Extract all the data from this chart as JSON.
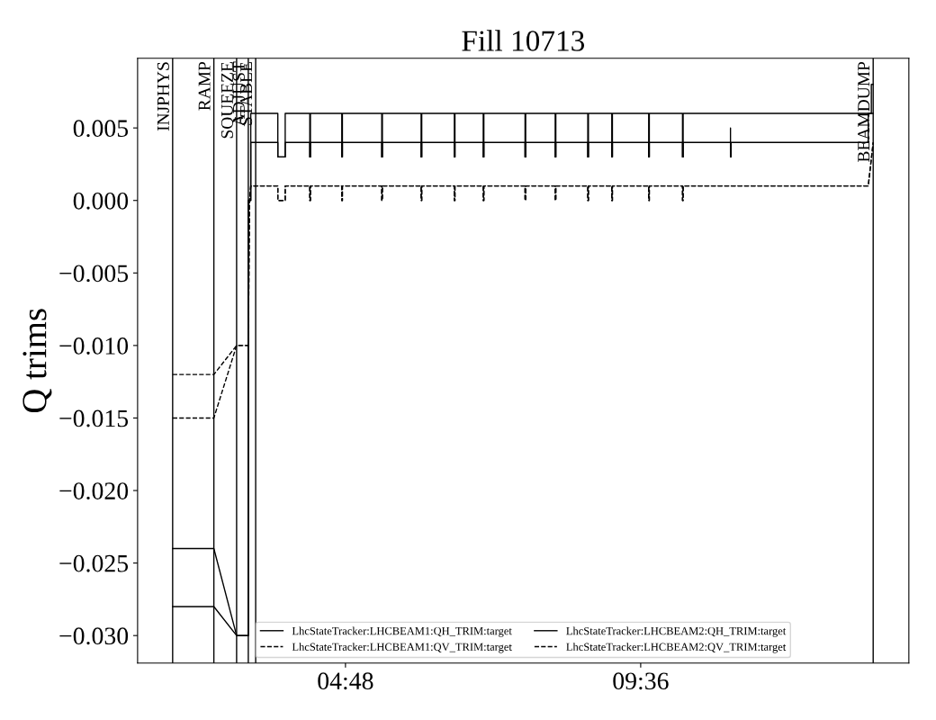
{
  "chart_data": {
    "type": "line",
    "title": "Fill 10713",
    "ylabel": "Q trims",
    "xlim": [
      1.42,
      13.96
    ],
    "xticks": [
      {
        "value": 4.8,
        "label": "04:48"
      },
      {
        "value": 9.6,
        "label": "09:36"
      }
    ],
    "ylim": [
      -0.0319,
      0.0098
    ],
    "yticks": [
      {
        "value": 0.005,
        "label": "0.005"
      },
      {
        "value": 0.0,
        "label": "0.000"
      },
      {
        "value": -0.005,
        "label": "−0.005"
      },
      {
        "value": -0.01,
        "label": "−0.010"
      },
      {
        "value": -0.015,
        "label": "−0.015"
      },
      {
        "value": -0.02,
        "label": "−0.020"
      },
      {
        "value": -0.025,
        "label": "−0.025"
      },
      {
        "value": -0.03,
        "label": "−0.030"
      }
    ],
    "grid": false,
    "legend": "bottom",
    "marker": "none",
    "ref_lines": [
      {
        "axis": "x",
        "value": 1.99,
        "label": "INJPHYS",
        "color": "#000000"
      },
      {
        "axis": "x",
        "value": 2.66,
        "label": "RAMP",
        "color": "#000000"
      },
      {
        "axis": "x",
        "value": 3.03,
        "label": "SQUEEZE",
        "color": "#000000"
      },
      {
        "axis": "x",
        "value": 3.22,
        "label": "ADJUST",
        "color": "#000000"
      },
      {
        "axis": "x",
        "value": 3.34,
        "label": "STABLE",
        "color": "#000000"
      },
      {
        "axis": "x",
        "value": 13.38,
        "label": "BEAMDUMP",
        "color": "#000000"
      }
    ],
    "series": [
      {
        "name": "LhcStateTracker:LHCBEAM1:QH_TRIM:target",
        "color": "#000000",
        "line_style": "solid",
        "x": [
          1.99,
          2.66,
          3.03,
          3.22,
          3.22,
          3.26,
          3.26,
          3.7,
          3.7,
          3.82,
          3.82,
          4.22,
          4.22,
          4.23,
          4.23,
          4.74,
          4.74,
          4.75,
          4.75,
          5.39,
          5.39,
          5.4,
          5.4,
          6.03,
          6.03,
          6.04,
          6.04,
          6.57,
          6.57,
          6.58,
          6.58,
          7.04,
          7.04,
          7.05,
          7.05,
          7.72,
          7.72,
          7.73,
          7.73,
          8.21,
          8.21,
          8.22,
          8.22,
          8.74,
          8.74,
          8.75,
          8.75,
          9.13,
          9.13,
          9.14,
          9.14,
          9.73,
          9.73,
          9.74,
          9.74,
          10.28,
          10.28,
          10.29,
          10.29,
          13.35,
          13.35,
          13.38
        ],
        "values": [
          -0.024,
          -0.024,
          -0.03,
          -0.03,
          0,
          0,
          0.006,
          0.006,
          0.003,
          0.003,
          0.006,
          0.006,
          0.003,
          0.003,
          0.006,
          0.006,
          0.003,
          0.003,
          0.006,
          0.006,
          0.003,
          0.003,
          0.006,
          0.006,
          0.003,
          0.003,
          0.006,
          0.006,
          0.003,
          0.003,
          0.006,
          0.006,
          0.003,
          0.003,
          0.006,
          0.006,
          0.003,
          0.003,
          0.006,
          0.006,
          0.003,
          0.003,
          0.006,
          0.006,
          0.003,
          0.003,
          0.006,
          0.006,
          0.003,
          0.003,
          0.006,
          0.006,
          0.003,
          0.003,
          0.006,
          0.006,
          0.003,
          0.003,
          0.006,
          0.006,
          0.008,
          0.008
        ]
      },
      {
        "name": "LhcStateTracker:LHCBEAM1:QV_TRIM:target",
        "color": "#000000",
        "line_style": "dashed",
        "x": [
          1.99,
          2.66,
          3.03,
          3.22,
          3.24,
          3.26,
          3.7,
          3.7,
          3.82,
          3.82,
          4.22,
          4.22,
          4.23,
          4.23,
          4.74,
          4.74,
          4.75,
          4.75,
          5.39,
          5.39,
          5.4,
          5.4,
          6.03,
          6.03,
          6.04,
          6.04,
          6.57,
          6.57,
          6.58,
          6.58,
          7.04,
          7.04,
          7.05,
          7.05,
          7.72,
          7.72,
          7.73,
          7.73,
          8.21,
          8.21,
          8.22,
          8.22,
          8.74,
          8.74,
          8.75,
          8.75,
          9.13,
          9.13,
          9.14,
          9.14,
          9.73,
          9.73,
          9.74,
          9.74,
          10.28,
          10.28,
          10.29,
          10.29,
          13.3,
          13.38
        ],
        "values": [
          -0.012,
          -0.012,
          -0.01,
          -0.01,
          0,
          0.001,
          0.001,
          0,
          0,
          0.001,
          0.001,
          0,
          0,
          0.001,
          0.001,
          0,
          0,
          0.001,
          0.001,
          0,
          0,
          0.001,
          0.001,
          0,
          0,
          0.001,
          0.001,
          0,
          0,
          0.001,
          0.001,
          0,
          0,
          0.001,
          0.001,
          0,
          0,
          0.001,
          0.001,
          0,
          0,
          0.001,
          0.001,
          0,
          0,
          0.001,
          0.001,
          0,
          0,
          0.001,
          0.001,
          0,
          0,
          0.001,
          0.001,
          0,
          0,
          0.001,
          0.001,
          0.004
        ]
      },
      {
        "name": "LhcStateTracker:LHCBEAM2:QH_TRIM:target",
        "color": "#000000",
        "line_style": "solid",
        "x": [
          1.99,
          2.66,
          3.03,
          3.22,
          3.22,
          3.26,
          3.26,
          3.7,
          3.7,
          3.82,
          3.82,
          4.22,
          4.22,
          4.23,
          4.23,
          4.74,
          4.74,
          4.75,
          4.75,
          5.39,
          5.39,
          5.4,
          5.4,
          6.03,
          6.03,
          6.04,
          6.04,
          6.57,
          6.57,
          6.58,
          6.58,
          7.04,
          7.04,
          7.05,
          7.05,
          7.72,
          7.72,
          7.73,
          7.73,
          8.21,
          8.21,
          8.22,
          8.22,
          8.74,
          8.74,
          8.75,
          8.75,
          9.13,
          9.13,
          9.14,
          9.14,
          9.73,
          9.73,
          9.74,
          9.74,
          10.28,
          10.28,
          10.29,
          10.29,
          11.06,
          11.06,
          11.06,
          11.07,
          11.07,
          13.3,
          13.3,
          13.38
        ],
        "values": [
          -0.028,
          -0.028,
          -0.03,
          -0.03,
          0,
          0,
          0.004,
          0.004,
          0.003,
          0.003,
          0.004,
          0.004,
          0.003,
          0.003,
          0.004,
          0.004,
          0.003,
          0.003,
          0.004,
          0.004,
          0.003,
          0.003,
          0.004,
          0.004,
          0.003,
          0.003,
          0.004,
          0.004,
          0.003,
          0.003,
          0.004,
          0.004,
          0.003,
          0.003,
          0.004,
          0.004,
          0.003,
          0.003,
          0.004,
          0.004,
          0.003,
          0.003,
          0.004,
          0.004,
          0.003,
          0.003,
          0.004,
          0.004,
          0.003,
          0.003,
          0.004,
          0.004,
          0.003,
          0.003,
          0.004,
          0.004,
          0.003,
          0.003,
          0.004,
          0.004,
          0.005,
          0.003,
          0.003,
          0.004,
          0.004,
          0.006,
          0.006
        ]
      },
      {
        "name": "LhcStateTracker:LHCBEAM2:QV_TRIM:target",
        "color": "#000000",
        "line_style": "dashed",
        "x": [
          1.99,
          2.66,
          3.03,
          3.22,
          3.24,
          3.26,
          3.7,
          3.7,
          3.82,
          3.82,
          4.22,
          4.22,
          4.23,
          4.23,
          4.74,
          4.74,
          4.75,
          4.75,
          5.39,
          5.39,
          5.4,
          5.4,
          6.03,
          6.03,
          6.04,
          6.04,
          6.57,
          6.57,
          6.58,
          6.58,
          7.04,
          7.04,
          7.05,
          7.05,
          7.72,
          7.72,
          7.73,
          7.73,
          8.21,
          8.21,
          8.22,
          8.22,
          8.74,
          8.74,
          8.75,
          8.75,
          9.13,
          9.13,
          9.14,
          9.14,
          9.73,
          9.73,
          9.74,
          9.74,
          10.28,
          10.28,
          10.29,
          10.29,
          13.3,
          13.38
        ],
        "values": [
          -0.015,
          -0.015,
          -0.01,
          -0.01,
          0,
          0.001,
          0.001,
          0,
          0,
          0.001,
          0.001,
          0,
          0,
          0.001,
          0.001,
          0,
          0,
          0.001,
          0.001,
          0,
          0,
          0.001,
          0.001,
          0,
          0,
          0.001,
          0.001,
          0,
          0,
          0.001,
          0.001,
          0,
          0,
          0.001,
          0.001,
          0,
          0,
          0.001,
          0.001,
          0,
          0,
          0.001,
          0.001,
          0,
          0,
          0.001,
          0.001,
          0,
          0,
          0.001,
          0.001,
          0,
          0,
          0.001,
          0.001,
          0,
          0,
          0.001,
          0.001,
          0.004
        ]
      }
    ]
  }
}
